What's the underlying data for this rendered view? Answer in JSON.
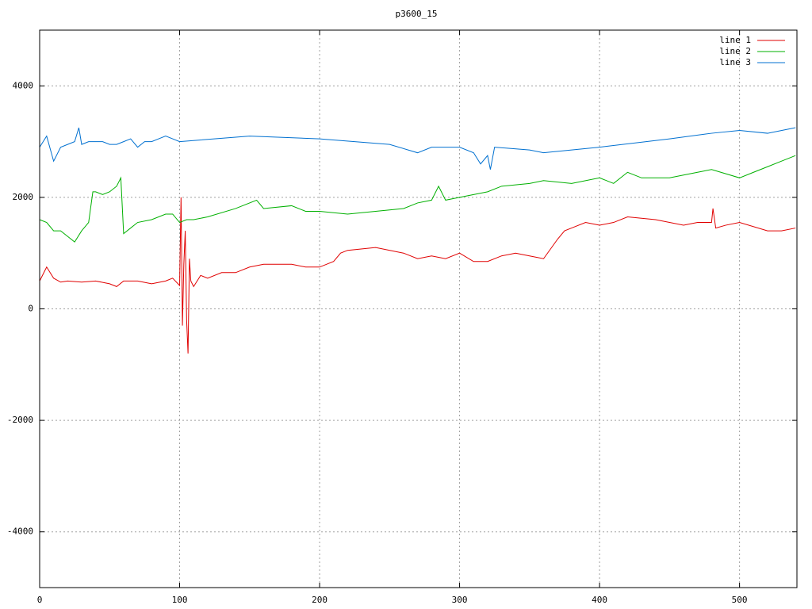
{
  "chart_data": {
    "type": "line",
    "title": "p3600_15",
    "xlim": [
      0,
      541
    ],
    "ylim": [
      -5000,
      5000
    ],
    "xticks": [
      0,
      100,
      200,
      300,
      400,
      500
    ],
    "yticks": [
      -4000,
      -2000,
      0,
      2000,
      4000
    ],
    "grid": true,
    "legend": "top-right",
    "series": [
      {
        "name": "line 1",
        "color": "#e00000",
        "x": [
          0,
          5,
          10,
          15,
          20,
          30,
          40,
          50,
          55,
          60,
          70,
          80,
          90,
          95,
          100,
          101,
          102,
          103,
          104,
          105,
          106,
          107,
          108,
          110,
          115,
          120,
          130,
          140,
          150,
          160,
          180,
          190,
          200,
          210,
          215,
          220,
          240,
          260,
          270,
          280,
          290,
          300,
          310,
          320,
          330,
          340,
          350,
          360,
          370,
          375,
          380,
          390,
          400,
          410,
          420,
          440,
          460,
          470,
          480,
          481,
          483,
          490,
          500,
          520,
          530,
          540
        ],
        "values": [
          500,
          750,
          550,
          480,
          500,
          480,
          500,
          450,
          400,
          500,
          500,
          450,
          500,
          550,
          420,
          2000,
          -300,
          800,
          1400,
          -200,
          -800,
          900,
          500,
          400,
          600,
          550,
          650,
          650,
          750,
          800,
          800,
          750,
          750,
          850,
          1000,
          1050,
          1100,
          1000,
          900,
          950,
          900,
          1000,
          850,
          850,
          950,
          1000,
          950,
          900,
          1250,
          1400,
          1450,
          1550,
          1500,
          1550,
          1650,
          1600,
          1500,
          1550,
          1550,
          1800,
          1450,
          1500,
          1550,
          1400,
          1400,
          1450
        ]
      },
      {
        "name": "line 2",
        "color": "#00b000",
        "x": [
          0,
          5,
          10,
          15,
          20,
          25,
          30,
          35,
          38,
          40,
          45,
          50,
          55,
          58,
          60,
          65,
          70,
          80,
          90,
          95,
          100,
          105,
          110,
          120,
          140,
          155,
          160,
          180,
          190,
          200,
          220,
          240,
          260,
          270,
          280,
          285,
          290,
          300,
          320,
          330,
          350,
          360,
          380,
          400,
          410,
          420,
          430,
          450,
          470,
          480,
          500,
          510,
          520,
          530,
          540
        ],
        "values": [
          1600,
          1550,
          1400,
          1400,
          1300,
          1200,
          1400,
          1550,
          2100,
          2100,
          2050,
          2100,
          2200,
          2350,
          1350,
          1450,
          1550,
          1600,
          1700,
          1700,
          1550,
          1600,
          1600,
          1650,
          1800,
          1950,
          1800,
          1850,
          1750,
          1750,
          1700,
          1750,
          1800,
          1900,
          1950,
          2200,
          1950,
          2000,
          2100,
          2200,
          2250,
          2300,
          2250,
          2350,
          2250,
          2450,
          2350,
          2350,
          2450,
          2500,
          2350,
          2450,
          2550,
          2650,
          2750
        ]
      },
      {
        "name": "line 3",
        "color": "#0070d0",
        "x": [
          0,
          5,
          10,
          15,
          20,
          25,
          28,
          30,
          35,
          40,
          45,
          50,
          55,
          60,
          65,
          70,
          75,
          80,
          85,
          90,
          95,
          100,
          150,
          200,
          250,
          270,
          280,
          300,
          310,
          315,
          320,
          322,
          325,
          350,
          360,
          400,
          450,
          480,
          500,
          520,
          540
        ],
        "values": [
          2900,
          3100,
          2650,
          2900,
          2950,
          3000,
          3250,
          2950,
          3000,
          3000,
          3000,
          2950,
          2950,
          3000,
          3050,
          2900,
          3000,
          3000,
          3050,
          3100,
          3050,
          3000,
          3100,
          3050,
          2950,
          2800,
          2900,
          2900,
          2800,
          2600,
          2750,
          2500,
          2900,
          2850,
          2800,
          2900,
          3050,
          3150,
          3200,
          3150,
          3250
        ]
      }
    ]
  }
}
